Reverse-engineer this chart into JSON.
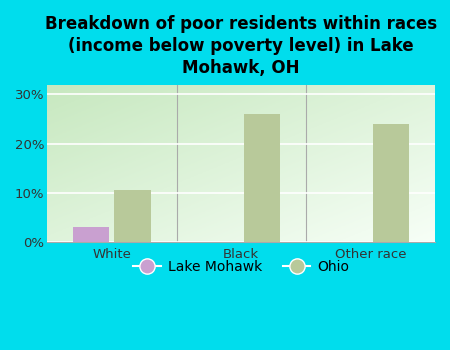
{
  "title": "Breakdown of poor residents within races\n(income below poverty level) in Lake\nMohawk, OH",
  "categories": [
    "White",
    "Black",
    "Other race"
  ],
  "lake_mohawk_values": [
    3.0,
    0.0,
    0.0
  ],
  "ohio_values": [
    10.5,
    26.0,
    24.0
  ],
  "lake_mohawk_color": "#c9a0d0",
  "ohio_color": "#b8c99a",
  "background_color": "#00dded",
  "plot_bg_top_left": "#b8ddb0",
  "plot_bg_bottom_right": "#f0f8f0",
  "yticks": [
    0,
    10,
    20,
    30
  ],
  "ylim": [
    0,
    32
  ],
  "bar_width": 0.28,
  "legend_labels": [
    "Lake Mohawk",
    "Ohio"
  ],
  "title_fontsize": 12,
  "tick_fontsize": 9.5,
  "legend_fontsize": 10
}
